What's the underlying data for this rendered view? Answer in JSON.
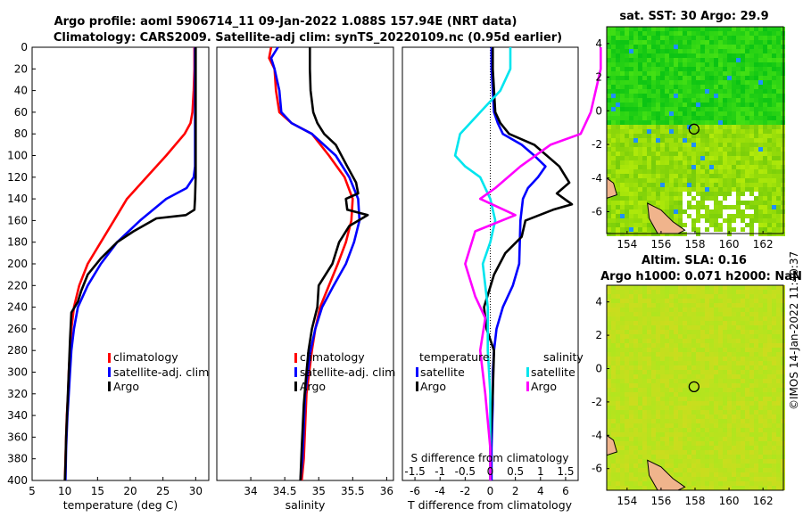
{
  "title": {
    "line1": "Argo profile: aoml 5906714_11 09-Jan-2022 1.088S 157.94E (NRT data)",
    "line2": "Climatology: CARS2009. Satellite-adj clim: synTS_20220109.nc (0.95d earlier)"
  },
  "side_label": "©IMOS 14-Jan-2022 11:40:37",
  "colors": {
    "climatology": "#ff0000",
    "satellite": "#0000ff",
    "argo": "#000000",
    "sat_diff_s": "#00e5ee",
    "argo_diff_s": "#ff00ff"
  },
  "chart_data": [
    {
      "id": "temperature",
      "type": "line",
      "xlabel": "temperature (deg C)",
      "ylabel": "",
      "xlim": [
        5,
        32
      ],
      "ylim": [
        400,
        0
      ],
      "xticks": [
        "5",
        "10",
        "15",
        "20",
        "25",
        "30"
      ],
      "yticks": [
        "0",
        "20",
        "40",
        "60",
        "80",
        "100",
        "120",
        "140",
        "160",
        "180",
        "200",
        "220",
        "240",
        "260",
        "280",
        "300",
        "320",
        "340",
        "360",
        "380",
        "400"
      ],
      "legend": [
        "climatology",
        "satellite-adj. clim",
        "Argo"
      ],
      "series": [
        {
          "name": "climatology",
          "color": "#ff0000",
          "x": [
            29.8,
            29.8,
            29.7,
            29.5,
            29.2,
            28.3,
            25.5,
            22.5,
            19.5,
            17.5,
            15.5,
            13.5,
            12.2,
            11.4,
            11.0,
            10.8,
            10.6,
            10.5,
            10.3,
            10.2,
            10.1,
            10.0
          ],
          "y": [
            0,
            20,
            40,
            60,
            70,
            80,
            100,
            120,
            140,
            160,
            180,
            200,
            220,
            240,
            260,
            280,
            300,
            320,
            340,
            360,
            380,
            400
          ]
        },
        {
          "name": "satellite-adj. clim",
          "color": "#0000ff",
          "x": [
            29.9,
            29.9,
            29.9,
            29.9,
            29.9,
            29.9,
            29.9,
            29.7,
            28.6,
            25.5,
            21.5,
            18.0,
            15.5,
            13.5,
            12.0,
            11.4,
            11.0,
            10.8,
            10.6,
            10.4,
            10.2,
            10.1
          ],
          "y": [
            0,
            20,
            40,
            60,
            80,
            100,
            110,
            120,
            130,
            140,
            160,
            180,
            200,
            220,
            240,
            260,
            280,
            300,
            320,
            340,
            370,
            400
          ]
        },
        {
          "name": "Argo",
          "color": "#000000",
          "x": [
            30.0,
            30.0,
            30.0,
            30.0,
            29.9,
            29.8,
            28.5,
            24.0,
            20.5,
            18.0,
            15.5,
            13.5,
            12.5,
            12.0,
            11.0,
            10.8,
            10.6,
            10.4,
            10.2,
            10.1,
            10.0
          ],
          "y": [
            0,
            40,
            80,
            120,
            140,
            150,
            155,
            158,
            170,
            180,
            195,
            210,
            225,
            235,
            245,
            270,
            300,
            330,
            360,
            385,
            400
          ]
        }
      ]
    },
    {
      "id": "salinity",
      "type": "line",
      "xlabel": "salinity",
      "ylabel": "",
      "xlim": [
        33.5,
        36.1
      ],
      "ylim": [
        400,
        0
      ],
      "xticks": [
        "34",
        "34.5",
        "35",
        "35.5",
        "36"
      ],
      "legend": [
        "climatology",
        "satellite-adj. clim",
        "Argo"
      ],
      "series": [
        {
          "name": "climatology",
          "color": "#ff0000",
          "x": [
            34.3,
            34.27,
            34.35,
            34.37,
            34.42,
            34.6,
            34.9,
            35.15,
            35.38,
            35.5,
            35.48,
            35.4,
            35.28,
            35.15,
            35.02,
            34.95,
            34.9,
            34.86,
            34.82,
            34.8,
            34.78,
            34.75
          ],
          "y": [
            0,
            10,
            20,
            40,
            60,
            70,
            80,
            100,
            120,
            140,
            160,
            180,
            200,
            220,
            240,
            260,
            280,
            300,
            320,
            350,
            380,
            400
          ]
        },
        {
          "name": "satellite-adj. clim",
          "color": "#0000ff",
          "x": [
            34.4,
            34.3,
            34.35,
            34.42,
            34.45,
            34.6,
            34.9,
            35.25,
            35.45,
            35.58,
            35.6,
            35.52,
            35.4,
            35.22,
            35.05,
            34.95,
            34.88,
            34.84,
            34.8,
            34.78,
            34.76,
            34.73
          ],
          "y": [
            0,
            10,
            20,
            40,
            60,
            70,
            80,
            100,
            120,
            140,
            160,
            180,
            200,
            220,
            240,
            260,
            280,
            300,
            320,
            350,
            380,
            400
          ]
        },
        {
          "name": "Argo",
          "color": "#000000",
          "x": [
            34.87,
            34.87,
            34.88,
            34.92,
            34.98,
            35.08,
            35.25,
            35.42,
            35.55,
            35.58,
            35.4,
            35.42,
            35.72,
            35.45,
            35.3,
            35.2,
            35.0,
            34.98,
            34.9,
            34.85,
            34.82,
            34.78,
            34.75,
            34.73
          ],
          "y": [
            0,
            20,
            40,
            60,
            70,
            80,
            90,
            110,
            125,
            135,
            140,
            150,
            155,
            165,
            180,
            200,
            220,
            240,
            260,
            280,
            300,
            330,
            370,
            400
          ]
        }
      ]
    },
    {
      "id": "difference",
      "type": "line",
      "xlabel": "T difference from climatology",
      "ylabel": "",
      "xlim": [
        -7,
        7
      ],
      "ylim": [
        400,
        0
      ],
      "xticks": [
        "-6",
        "-4",
        "-2",
        "0",
        "2",
        "4",
        "6"
      ],
      "top_label": "S difference from climatology",
      "top_ticks": [
        "-1.5",
        "-1",
        "-0.5",
        "0",
        "0.5",
        "1",
        "1.5"
      ],
      "legend_left_title": "temperature",
      "legend_right_title": "salinity",
      "legend_left": [
        "satellite",
        "Argo"
      ],
      "legend_right": [
        "satellite",
        "Argo"
      ],
      "series": [
        {
          "name": "T satellite",
          "color": "#0000ff",
          "x": [
            0.1,
            0.1,
            0.2,
            0.3,
            0.6,
            1.0,
            2.5,
            3.5,
            4.4,
            3.8,
            3.0,
            2.6,
            2.4,
            2.3,
            1.8,
            1.0,
            0.5,
            0.3,
            0.2,
            0.2,
            0.1,
            0.1
          ],
          "y": [
            0,
            20,
            40,
            60,
            70,
            80,
            90,
            100,
            110,
            120,
            130,
            140,
            160,
            200,
            220,
            240,
            260,
            280,
            300,
            330,
            370,
            400
          ]
        },
        {
          "name": "T Argo",
          "color": "#000000",
          "x": [
            0.2,
            0.2,
            0.3,
            0.4,
            0.8,
            1.5,
            3.5,
            5.5,
            6.3,
            5.3,
            6.5,
            5.0,
            2.8,
            2.5,
            1.2,
            0.3,
            -0.5,
            -0.3,
            0.3,
            0.2,
            0.0,
            0.0
          ],
          "y": [
            0,
            20,
            40,
            60,
            70,
            80,
            90,
            110,
            125,
            135,
            145,
            150,
            160,
            175,
            190,
            210,
            240,
            260,
            280,
            320,
            370,
            400
          ]
        },
        {
          "name": "S satellite",
          "color": "#00e5ee",
          "x": [
            0.4,
            0.4,
            0.2,
            -0.2,
            -0.6,
            -0.7,
            -0.5,
            -0.2,
            0.0,
            0.1,
            0.0,
            -0.15,
            -0.1,
            -0.05,
            -0.05,
            0.0,
            0.0,
            0.0
          ],
          "y": [
            0,
            20,
            40,
            60,
            80,
            100,
            110,
            120,
            140,
            160,
            180,
            200,
            220,
            240,
            280,
            320,
            370,
            400
          ]
        },
        {
          "name": "S Argo",
          "color": "#ff00ff",
          "x": [
            2.2,
            2.2,
            2.1,
            2.0,
            1.8,
            1.2,
            0.6,
            0.1,
            -0.2,
            0.5,
            -0.3,
            -0.5,
            -0.3,
            -0.1,
            -0.2,
            -0.1,
            0.0,
            0.0
          ],
          "y": [
            0,
            20,
            40,
            60,
            80,
            90,
            110,
            130,
            140,
            155,
            170,
            200,
            230,
            250,
            280,
            320,
            370,
            400
          ]
        }
      ]
    },
    {
      "id": "sst_map",
      "type": "heatmap",
      "title": "sat. SST: 30 Argo: 29.9",
      "xticks": [
        "154",
        "156",
        "158",
        "160",
        "162"
      ],
      "yticks": [
        "4",
        "2",
        "0",
        "-2",
        "-4",
        "-6"
      ],
      "xlim": [
        152.8,
        163.2
      ],
      "ylim": [
        -7.3,
        5
      ],
      "marker": {
        "lon": 157.94,
        "lat": -1.088
      }
    },
    {
      "id": "sla_map",
      "type": "heatmap",
      "title": "Altim. SLA: 0.16",
      "subtitle": "Argo h1000: 0.071 h2000: NaN",
      "xticks": [
        "154",
        "156",
        "158",
        "160",
        "162"
      ],
      "yticks": [
        "4",
        "2",
        "0",
        "-2",
        "-4",
        "-6"
      ],
      "xlim": [
        152.8,
        163.2
      ],
      "ylim": [
        -7.3,
        5
      ],
      "marker": {
        "lon": 157.94,
        "lat": -1.088
      }
    }
  ]
}
